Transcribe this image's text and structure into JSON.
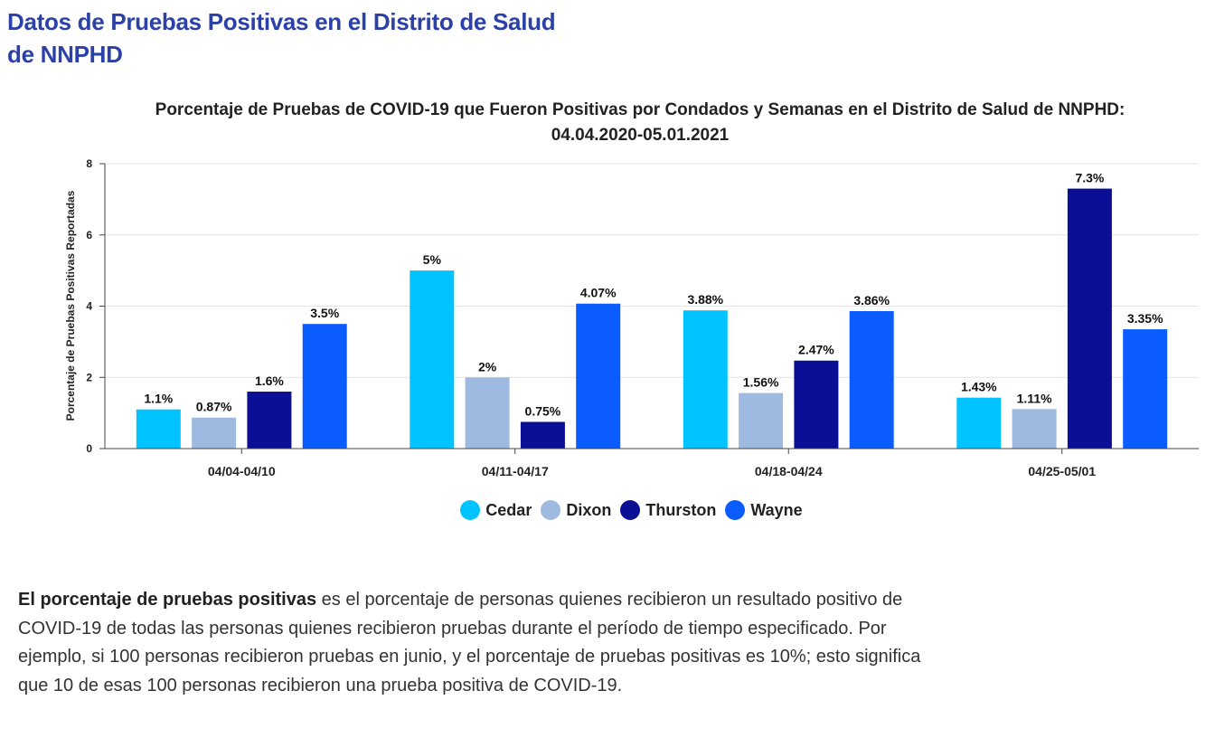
{
  "page": {
    "title": "Datos de Pruebas Positivas en el Distrito de Salud de NNPHD"
  },
  "definition": {
    "term": "El porcentaje de pruebas positivas",
    "text": " es el porcentaje de personas quienes recibieron un resultado positivo de COVID-19 de todas las personas quienes recibieron pruebas durante el período de tiempo especificado. Por ejemplo, si 100 personas recibieron pruebas en junio, y el porcentaje de pruebas positivas es 10%; esto significa que 10 de esas 100 personas recibieron una prueba positiva de COVID-19."
  },
  "chart_data": {
    "type": "bar",
    "title": "Porcentaje de Pruebas de COVID-19 que Fueron Positivas por Condados y Semanas en el Distrito de Salud de NNPHD:",
    "subtitle": "04.04.2020-05.01.2021",
    "xlabel": "",
    "ylabel": "Porcentaje de Pruebas Positivas Reportadas",
    "ylim": [
      0,
      8
    ],
    "yticks": [
      0,
      2,
      4,
      6,
      8
    ],
    "grid": true,
    "legend_position": "bottom",
    "categories": [
      "04/04-04/10",
      "04/11-04/17",
      "04/18-04/24",
      "04/25-05/01"
    ],
    "series": [
      {
        "name": "Cedar",
        "color": "#00c3ff",
        "values": [
          1.1,
          5,
          3.88,
          1.43
        ],
        "labels": [
          "1.1%",
          "5%",
          "3.88%",
          "1.43%"
        ]
      },
      {
        "name": "Dixon",
        "color": "#9fbae0",
        "values": [
          0.87,
          2,
          1.56,
          1.11
        ],
        "labels": [
          "0.87%",
          "2%",
          "1.56%",
          "1.11%"
        ]
      },
      {
        "name": "Thurston",
        "color": "#0a0f96",
        "values": [
          1.6,
          0.75,
          2.47,
          7.3
        ],
        "labels": [
          "1.6%",
          "0.75%",
          "2.47%",
          "7.3%"
        ]
      },
      {
        "name": "Wayne",
        "color": "#0a5cff",
        "values": [
          3.5,
          4.07,
          3.86,
          3.35
        ],
        "labels": [
          "3.5%",
          "4.07%",
          "3.86%",
          "3.35%"
        ]
      }
    ]
  }
}
